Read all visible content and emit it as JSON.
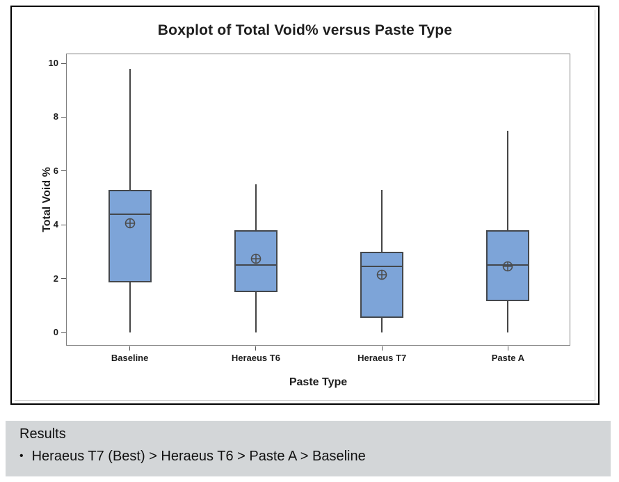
{
  "chart_data": {
    "type": "boxplot",
    "title": "Boxplot of Total Void% versus Paste Type",
    "xlabel": "Paste Type",
    "ylabel": "Total Void %",
    "ylim": [
      0,
      10
    ],
    "yticks": [
      0,
      2,
      4,
      6,
      8,
      10
    ],
    "grid": false,
    "legend": "none",
    "categories": [
      "Baseline",
      "Heraeus T6",
      "Heraeus T7",
      "Paste A"
    ],
    "series": [
      {
        "label": "Baseline",
        "min": 0,
        "q1": 1.85,
        "median": 4.4,
        "q3": 5.3,
        "max": 9.8,
        "mean": 4.05
      },
      {
        "label": "Heraeus T6",
        "min": 0,
        "q1": 1.5,
        "median": 2.5,
        "q3": 3.8,
        "max": 5.5,
        "mean": 2.75
      },
      {
        "label": "Heraeus T7",
        "min": 0,
        "q1": 0.55,
        "median": 2.45,
        "q3": 3.0,
        "max": 5.3,
        "mean": 2.15
      },
      {
        "label": "Paste A",
        "min": 0,
        "q1": 1.15,
        "median": 2.5,
        "q3": 3.8,
        "max": 7.5,
        "mean": 2.45
      }
    ],
    "style": {
      "box_fill": "#7da4d8",
      "box_border": "#43474c",
      "whisker_color": "#454545",
      "mean_marker": "circle-plus",
      "mean_marker_color": "#4c4c4c",
      "frame_color": "#7f7f7f",
      "tick_color": "#555555"
    }
  },
  "results": {
    "heading": "Results",
    "bullet_glyph": "•",
    "bullet_text": "Heraeus T7 (Best) > Heraeus T6 > Paste A > Baseline",
    "panel_bg": "#d3d6d8"
  }
}
